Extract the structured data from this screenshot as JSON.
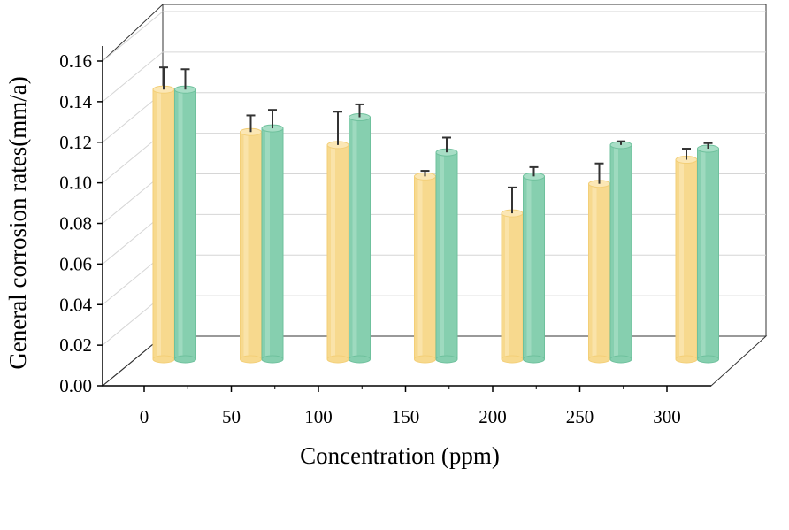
{
  "chart_data": {
    "type": "bar",
    "style": "3d-cylinder",
    "xlabel": "Concentration (ppm)",
    "ylabel": "General corrosion rates(mm/a)",
    "ylim": [
      0,
      0.16
    ],
    "yticks": [
      "0.00",
      "0.02",
      "0.04",
      "0.06",
      "0.08",
      "0.10",
      "0.12",
      "0.14",
      "0.16"
    ],
    "categories": [
      "0",
      "50",
      "100",
      "150",
      "200",
      "250",
      "300"
    ],
    "grid": true,
    "legend": "none",
    "series": [
      {
        "color": "#f7d98e",
        "values": [
          0.146,
          0.123,
          0.116,
          0.099,
          0.079,
          0.095,
          0.108
        ],
        "errors": [
          0.012,
          0.009,
          0.018,
          0.003,
          0.014,
          0.011,
          0.006
        ]
      },
      {
        "color": "#86cfaf",
        "values": [
          0.146,
          0.125,
          0.131,
          0.112,
          0.099,
          0.116,
          0.114
        ],
        "errors": [
          0.011,
          0.01,
          0.007,
          0.008,
          0.005,
          0.002,
          0.003
        ]
      }
    ]
  }
}
